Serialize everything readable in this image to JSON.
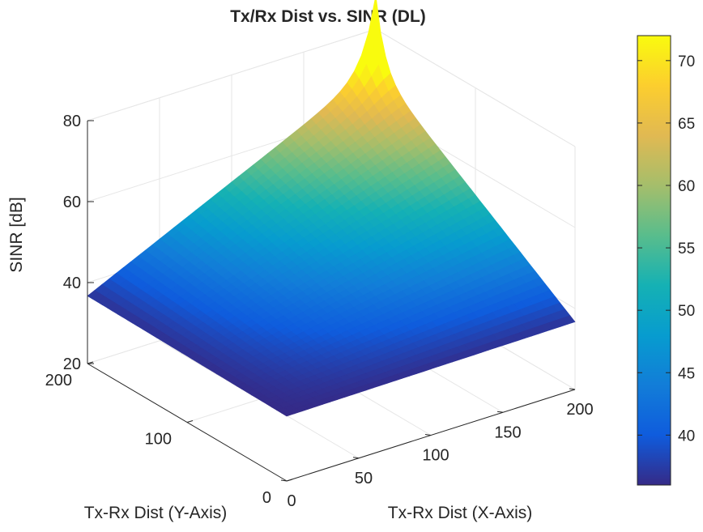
{
  "chart_data": {
    "type": "surface",
    "title": "Tx/Rx Dist vs. SINR (DL)",
    "xlabel": "Tx-Rx Dist (X-Axis)",
    "ylabel": "Tx-Rx Dist (Y-Axis)",
    "zlabel": "SINR [dB]",
    "xlim": [
      0,
      200
    ],
    "ylim": [
      0,
      200
    ],
    "zlim": [
      20,
      80
    ],
    "xticks": [
      "0",
      "50",
      "100",
      "150",
      "200"
    ],
    "yticks": [
      "0",
      "100",
      "200"
    ],
    "zticks": [
      "20",
      "40",
      "60",
      "80"
    ],
    "grid": true,
    "colormap": "parula",
    "colorbar": {
      "range": [
        36,
        72
      ],
      "ticks": [
        "40",
        "45",
        "50",
        "55",
        "60",
        "65",
        "70"
      ]
    },
    "surface": {
      "peak": {
        "x": 200,
        "y": 200,
        "sinr": 72
      },
      "corner_values": [
        {
          "x": 0,
          "y": 0,
          "sinr": 36
        },
        {
          "x": 200,
          "y": 0,
          "sinr": 38
        },
        {
          "x": 0,
          "y": 200,
          "sinr": 38
        },
        {
          "x": 200,
          "y": 200,
          "sinr": 72
        }
      ],
      "edge_midpoints": [
        {
          "x": 100,
          "y": 200,
          "sinr": 52
        },
        {
          "x": 200,
          "y": 100,
          "sinr": 52
        }
      ]
    }
  }
}
